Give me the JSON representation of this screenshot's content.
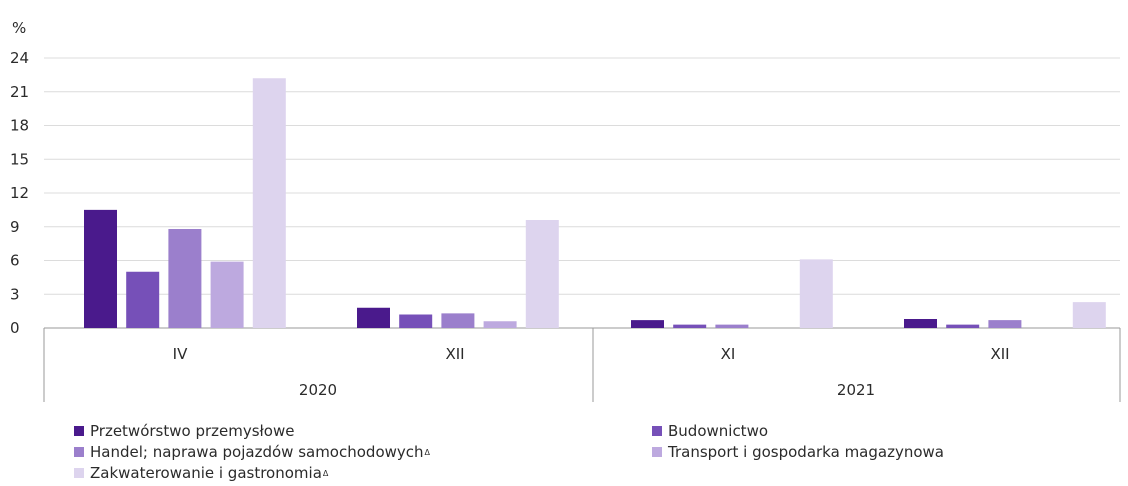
{
  "chart_data": {
    "type": "bar",
    "ylabel": "%",
    "ylim": [
      0,
      24
    ],
    "yticks": [
      0,
      3,
      6,
      9,
      12,
      15,
      18,
      21,
      24
    ],
    "grid": true,
    "legend_position": "bottom",
    "categories": [
      "IV",
      "XII",
      "XI",
      "XII"
    ],
    "groups": [
      {
        "label": "2020",
        "categories": [
          "IV",
          "XII"
        ]
      },
      {
        "label": "2021",
        "categories": [
          "XI",
          "XII"
        ]
      }
    ],
    "series": [
      {
        "name": "Przetwórstwo przemysłowe",
        "color": "#4a1a8c",
        "values": [
          10.5,
          1.8,
          0.7,
          0.8
        ]
      },
      {
        "name": "Budownictwo",
        "color": "#7650b8",
        "values": [
          5.0,
          1.2,
          0.3,
          0.3
        ]
      },
      {
        "name": "Handel; naprawa pojazdów samochodowych",
        "note_mark": "Δ",
        "color": "#9b7fcc",
        "values": [
          8.8,
          1.3,
          0.3,
          0.7
        ]
      },
      {
        "name": "Transport i gospodarka magazynowa",
        "color": "#bda9df",
        "values": [
          5.9,
          0.6,
          0.0,
          0.0
        ]
      },
      {
        "name": "Zakwaterowanie i gastronomia",
        "note_mark": "Δ",
        "color": "#ddd4ee",
        "values": [
          22.2,
          9.6,
          6.1,
          2.3
        ]
      }
    ]
  }
}
